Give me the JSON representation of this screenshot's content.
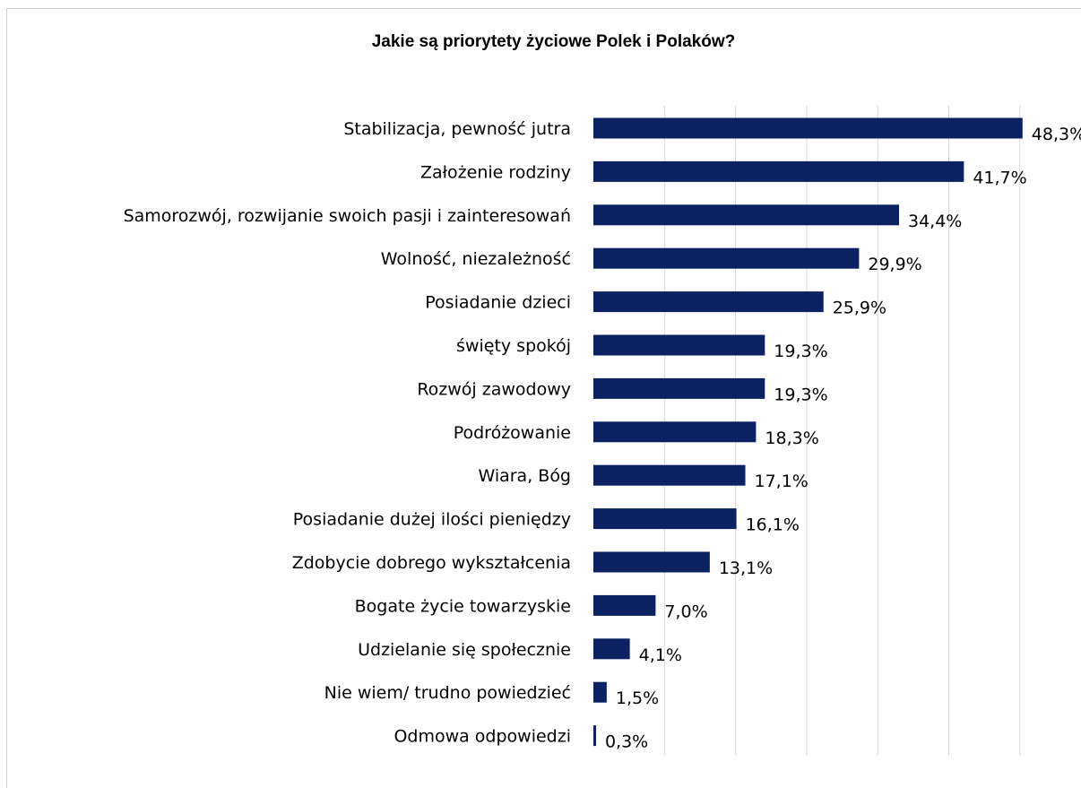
{
  "chart_data": {
    "type": "bar",
    "orientation": "horizontal",
    "title": "Jakie są priorytety życiowe Polek i Polaków?",
    "categories": [
      "Stabilizacja, pewność jutra",
      "Założenie rodziny",
      "Samorozwój, rozwijanie swoich pasji i zainteresowań",
      "Wolność, niezależność",
      "Posiadanie dzieci",
      "święty spokój",
      "Rozwój zawodowy",
      "Podróżowanie",
      "Wiara, Bóg",
      "Posiadanie dużej ilości pieniędzy",
      "Zdobycie dobrego wykształcenia",
      "Bogate życie towarzyskie",
      "Udzielanie się społecznie",
      "Nie wiem/ trudno powiedzieć",
      "Odmowa odpowiedzi"
    ],
    "values": [
      48.3,
      41.7,
      34.4,
      29.9,
      25.9,
      19.3,
      19.3,
      18.3,
      17.1,
      16.1,
      13.1,
      7.0,
      4.1,
      1.5,
      0.3
    ],
    "value_labels": [
      "48,3%",
      "41,7%",
      "34,4%",
      "29,9%",
      "25,9%",
      "19,3%",
      "19,3%",
      "18,3%",
      "17,1%",
      "16,1%",
      "13,1%",
      "7,0%",
      "4,1%",
      "1,5%",
      "0,3%"
    ],
    "xlim": [
      0,
      60
    ],
    "grid": true,
    "bar_color": "#0b2161",
    "grid_color": "#d9d9d9"
  }
}
